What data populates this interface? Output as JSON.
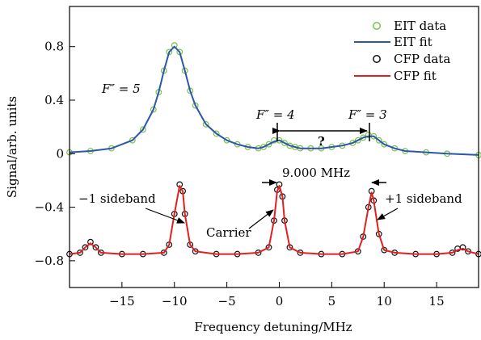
{
  "chart_data": {
    "type": "line",
    "title": "",
    "xlabel": "Frequency detuning/MHz",
    "ylabel": "Signal/arb. units",
    "xlim": [
      -20,
      19
    ],
    "ylim": [
      -1.0,
      1.1
    ],
    "xticks": [
      -15,
      -10,
      -5,
      0,
      5,
      10,
      15
    ],
    "xtick_labels": [
      "−15",
      "−10",
      "−5",
      "0",
      "5",
      "10",
      "15"
    ],
    "yticks": [
      -0.8,
      -0.4,
      0,
      0.4,
      0.8
    ],
    "ytick_labels": [
      "−0.8",
      "−0.4",
      "0",
      "0.4",
      "0.8"
    ],
    "grid": false,
    "legend_position": "top-right",
    "series": [
      {
        "name": "EIT data",
        "kind": "scatter",
        "color": "#7ac143",
        "x": [
          -20,
          -18,
          -16,
          -14,
          -13,
          -12,
          -11.5,
          -11,
          -10.5,
          -10,
          -9.5,
          -9,
          -8.5,
          -8,
          -7,
          -6,
          -5,
          -4,
          -3,
          -2,
          -1.5,
          -1,
          -0.5,
          0,
          0.5,
          1,
          1.5,
          2,
          3,
          4,
          5,
          6,
          7,
          7.5,
          8,
          8.5,
          9,
          9.5,
          10,
          11,
          12,
          14,
          16,
          19
        ],
        "y": [
          0.01,
          0.02,
          0.04,
          0.1,
          0.18,
          0.33,
          0.46,
          0.62,
          0.76,
          0.81,
          0.76,
          0.62,
          0.47,
          0.36,
          0.22,
          0.15,
          0.1,
          0.07,
          0.05,
          0.04,
          0.05,
          0.07,
          0.1,
          0.1,
          0.08,
          0.06,
          0.05,
          0.04,
          0.04,
          0.04,
          0.05,
          0.06,
          0.08,
          0.1,
          0.12,
          0.14,
          0.13,
          0.1,
          0.07,
          0.04,
          0.02,
          0.01,
          0.0,
          -0.01
        ]
      },
      {
        "name": "EIT fit",
        "kind": "line",
        "color": "#2a57a8",
        "x": [
          -20,
          -18,
          -16,
          -14,
          -13,
          -12,
          -11.5,
          -11,
          -10.5,
          -10,
          -9.5,
          -9,
          -8.5,
          -8,
          -7,
          -6,
          -5,
          -4,
          -3,
          -2,
          -1.5,
          -1,
          -0.5,
          0,
          0.5,
          1,
          1.5,
          2,
          3,
          4,
          5,
          6,
          7,
          7.5,
          8,
          8.5,
          9,
          9.5,
          10,
          11,
          12,
          14,
          16,
          19
        ],
        "y": [
          0.01,
          0.02,
          0.04,
          0.1,
          0.18,
          0.33,
          0.46,
          0.62,
          0.76,
          0.8,
          0.76,
          0.62,
          0.47,
          0.36,
          0.22,
          0.15,
          0.1,
          0.07,
          0.05,
          0.04,
          0.05,
          0.07,
          0.09,
          0.1,
          0.08,
          0.06,
          0.05,
          0.04,
          0.04,
          0.04,
          0.05,
          0.06,
          0.08,
          0.1,
          0.12,
          0.13,
          0.13,
          0.1,
          0.07,
          0.04,
          0.02,
          0.01,
          0.0,
          -0.01
        ]
      },
      {
        "name": "CFP data",
        "kind": "scatter",
        "color": "#111111",
        "x": [
          -20,
          -19,
          -18.5,
          -18,
          -17.5,
          -17,
          -15,
          -13,
          -11,
          -10.5,
          -10,
          -9.5,
          -9.2,
          -9,
          -8.5,
          -8,
          -6,
          -4,
          -2,
          -1,
          -0.5,
          -0.2,
          0,
          0.3,
          0.5,
          1,
          2,
          4,
          6,
          7.5,
          8,
          8.5,
          8.8,
          9,
          9.5,
          10,
          11,
          13,
          15,
          16.5,
          17,
          17.5,
          18,
          19
        ],
        "y": [
          -0.75,
          -0.74,
          -0.7,
          -0.66,
          -0.7,
          -0.74,
          -0.75,
          -0.75,
          -0.74,
          -0.68,
          -0.45,
          -0.23,
          -0.28,
          -0.45,
          -0.68,
          -0.73,
          -0.75,
          -0.75,
          -0.74,
          -0.7,
          -0.5,
          -0.27,
          -0.23,
          -0.32,
          -0.5,
          -0.7,
          -0.74,
          -0.75,
          -0.75,
          -0.73,
          -0.62,
          -0.4,
          -0.28,
          -0.35,
          -0.6,
          -0.72,
          -0.74,
          -0.75,
          -0.75,
          -0.74,
          -0.71,
          -0.7,
          -0.73,
          -0.75
        ]
      },
      {
        "name": "CFP fit",
        "kind": "line",
        "color": "#e02020",
        "x": [
          -20,
          -19,
          -18.5,
          -18,
          -17.5,
          -17,
          -15,
          -13,
          -11,
          -10.5,
          -10,
          -9.5,
          -9.2,
          -9,
          -8.5,
          -8,
          -6,
          -4,
          -2,
          -1,
          -0.5,
          -0.2,
          0,
          0.3,
          0.5,
          1,
          2,
          4,
          6,
          7.5,
          8,
          8.5,
          8.8,
          9,
          9.5,
          10,
          11,
          13,
          15,
          16.5,
          17,
          17.5,
          18,
          19
        ],
        "y": [
          -0.75,
          -0.74,
          -0.7,
          -0.67,
          -0.7,
          -0.74,
          -0.75,
          -0.75,
          -0.74,
          -0.68,
          -0.45,
          -0.24,
          -0.28,
          -0.45,
          -0.68,
          -0.73,
          -0.75,
          -0.75,
          -0.74,
          -0.7,
          -0.5,
          -0.28,
          -0.24,
          -0.32,
          -0.5,
          -0.7,
          -0.74,
          -0.75,
          -0.75,
          -0.73,
          -0.62,
          -0.4,
          -0.29,
          -0.35,
          -0.6,
          -0.72,
          -0.74,
          -0.75,
          -0.75,
          -0.74,
          -0.72,
          -0.71,
          -0.73,
          -0.75
        ]
      }
    ],
    "annotations": {
      "f5": "F″ = 5",
      "f4": "F″ = 4",
      "f3": "F″ = 3",
      "question": "?",
      "mhz": "9.000 MHz",
      "minus_sideband": "−1 sideband",
      "carrier": "Carrier",
      "plus_sideband": "+1 sideband"
    }
  }
}
